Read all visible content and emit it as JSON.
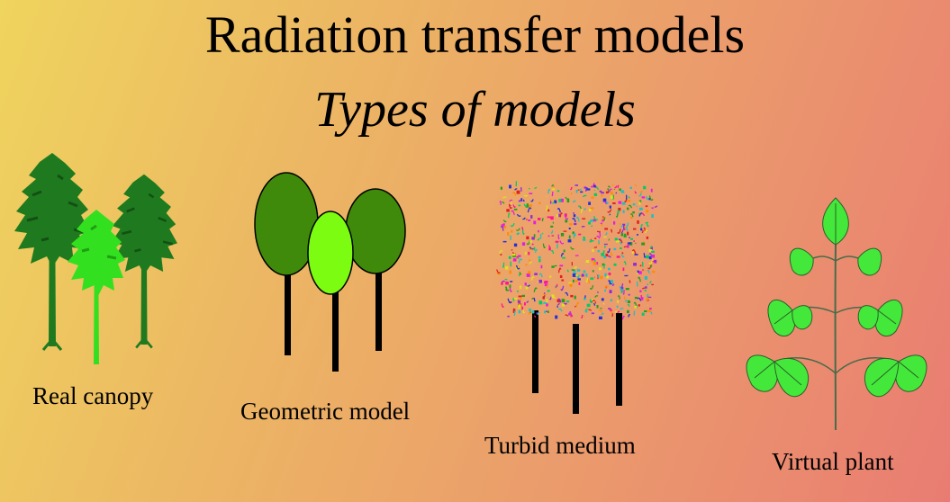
{
  "slide": {
    "title": "Radiation transfer models",
    "subtitle": "Types of models"
  },
  "panels": [
    {
      "id": "real-canopy",
      "label": "Real canopy"
    },
    {
      "id": "geometric-model",
      "label": "Geometric model"
    },
    {
      "id": "turbid-medium",
      "label": "Turbid medium"
    },
    {
      "id": "virtual-plant",
      "label": "Virtual plant"
    }
  ],
  "colors": {
    "dark_green": "#1f7a1f",
    "light_green": "#33e01f",
    "ellipse_dark": "#3f8a0a",
    "ellipse_light": "#7cfc10",
    "leaf_green": "#44e83a",
    "trunk": "#000000"
  },
  "icons": [
    "tree-icon",
    "ellipsoid-crown-icon",
    "turbid-box-icon",
    "virtual-plant-icon"
  ]
}
